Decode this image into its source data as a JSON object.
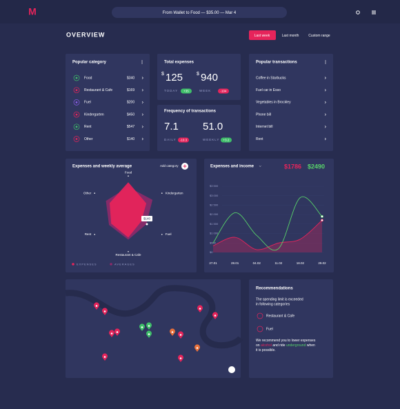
{
  "header": {
    "logo": "M",
    "search": "From Wallet to Food — $35.00 — Mar 4"
  },
  "overview": {
    "title": "OVERVIEW",
    "tabs": [
      "Last week",
      "Last month",
      "Custom range"
    ],
    "active_tab": 0
  },
  "popular_category": {
    "title": "Popular category",
    "items": [
      {
        "name": "Food",
        "amount": "$340"
      },
      {
        "name": "Restaurant & Cafe",
        "amount": "$169"
      },
      {
        "name": "Fuel",
        "amount": "$200"
      },
      {
        "name": "Kindergarten",
        "amount": "$450"
      },
      {
        "name": "Rent",
        "amount": "$547"
      },
      {
        "name": "Other",
        "amount": "$140"
      }
    ]
  },
  "total_expenses": {
    "title": "Total expenses",
    "today": {
      "currency": "$",
      "value": "125",
      "label": "TODAY",
      "change": "+35"
    },
    "week": {
      "currency": "$",
      "value": "940",
      "label": "WEEK",
      "change": "-104"
    }
  },
  "frequency": {
    "title": "Frequency of transactions",
    "daily": {
      "value": "7.1",
      "label": "DAILY",
      "change": "-10.3"
    },
    "weekly": {
      "value": "51.0",
      "label": "WEEKLY",
      "change": "+3.2"
    }
  },
  "popular_transactions": {
    "title": "Popular transactions",
    "items": [
      "Coffee in Starbucks",
      "Fuel car in Esso",
      "Vegetables in Brockley",
      "Phone bill",
      "Internet bill",
      "Rent"
    ]
  },
  "chart_data": [
    {
      "type": "radar",
      "title": "Expenses and weekly average",
      "button": "Add category",
      "categories": [
        "Food",
        "Kindergarten",
        "Fuel",
        "Restaurant & Cafe",
        "Rent",
        "Other"
      ],
      "rlim": [
        0,
        100
      ],
      "series": [
        {
          "name": "AVERAGES",
          "color": "#8e2a6a",
          "values": [
            75,
            78,
            58,
            72,
            62,
            72
          ]
        },
        {
          "name": "EXPENSES",
          "color": "#e6245b",
          "values": [
            88,
            58,
            42,
            66,
            55,
            60
          ]
        }
      ],
      "annotation": "$140"
    },
    {
      "type": "line",
      "title": "Expenses and income",
      "categories": [
        "27.01",
        "28.01",
        "04.02",
        "11.02",
        "18.02",
        "29.02"
      ],
      "ylim": [
        0,
        3500
      ],
      "yticks": [
        {
          "value": 0,
          "label": "$0"
        },
        {
          "value": 500,
          "label": "$500"
        },
        {
          "value": 1000,
          "label": "$1 000"
        },
        {
          "value": 1500,
          "label": "$1 500"
        },
        {
          "value": 2000,
          "label": "$2 000"
        },
        {
          "value": 2500,
          "label": "$2 500"
        },
        {
          "value": 3000,
          "label": "$3 000"
        },
        {
          "value": 3500,
          "label": "$3 500"
        }
      ],
      "series": [
        {
          "color": "#e6245b",
          "total": "$1786",
          "values": [
            350,
            800,
            150,
            500,
            700,
            1700
          ]
        },
        {
          "color": "#58d36a",
          "total": "$2490",
          "values": [
            500,
            2100,
            900,
            200,
            2900,
            1900
          ]
        }
      ]
    }
  ],
  "recommendations": {
    "title": "Recommendations",
    "intro": [
      "The spending limit is exceeded",
      "in following categories"
    ],
    "items": [
      "Restaurant & Cafe",
      "Fuel"
    ],
    "message": [
      [
        {
          "text": "We recommend you to lower expenses"
        }
      ],
      [
        {
          "text": "on"
        },
        {
          "text": "alcohol",
          "color": "#e6245b"
        },
        {
          "text": "and ride"
        },
        {
          "text": "underground",
          "color": "#58d36a"
        },
        {
          "text": "when"
        }
      ],
      [
        {
          "text": "it is possible."
        }
      ]
    ]
  }
}
